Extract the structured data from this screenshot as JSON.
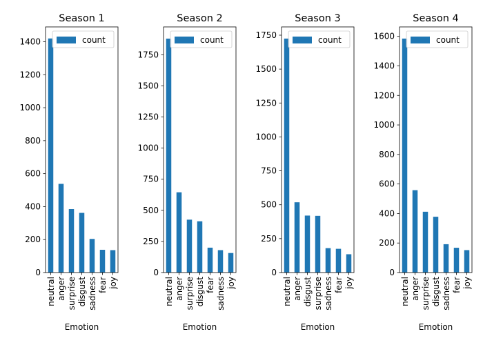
{
  "chart_data": [
    {
      "type": "bar",
      "title": "Season 1",
      "xlabel": "Emotion",
      "ylabel": "",
      "categories": [
        "neutral",
        "anger",
        "surprise",
        "disgust",
        "sadness",
        "fear",
        "joy"
      ],
      "series": [
        {
          "name": "count",
          "values": [
            1420,
            538,
            385,
            362,
            204,
            138,
            136
          ]
        }
      ],
      "ylim": [
        0,
        1490
      ],
      "yticks": [
        0,
        200,
        400,
        600,
        800,
        1000,
        1200,
        1400
      ],
      "legend": "upper right",
      "color": "#1f77b4"
    },
    {
      "type": "bar",
      "title": "Season 2",
      "xlabel": "Emotion",
      "ylabel": "",
      "categories": [
        "neutral",
        "anger",
        "surprise",
        "disgust",
        "fear",
        "sadness",
        "joy"
      ],
      "series": [
        {
          "name": "count",
          "values": [
            1880,
            645,
            425,
            412,
            200,
            180,
            157
          ]
        }
      ],
      "ylim": [
        0,
        1974
      ],
      "yticks": [
        0,
        250,
        500,
        750,
        1000,
        1250,
        1500,
        1750
      ],
      "legend": "upper right",
      "color": "#1f77b4"
    },
    {
      "type": "bar",
      "title": "Season 3",
      "xlabel": "Emotion",
      "ylabel": "",
      "categories": [
        "neutral",
        "anger",
        "disgust",
        "surprise",
        "sadness",
        "fear",
        "joy"
      ],
      "series": [
        {
          "name": "count",
          "values": [
            1725,
            518,
            420,
            418,
            180,
            175,
            135
          ]
        }
      ],
      "ylim": [
        0,
        1811
      ],
      "yticks": [
        0,
        250,
        500,
        750,
        1000,
        1250,
        1500,
        1750
      ],
      "legend": "upper right",
      "color": "#1f77b4"
    },
    {
      "type": "bar",
      "title": "Season 4",
      "xlabel": "Emotion",
      "ylabel": "",
      "categories": [
        "neutral",
        "anger",
        "surprise",
        "disgust",
        "sadness",
        "fear",
        "joy"
      ],
      "series": [
        {
          "name": "count",
          "values": [
            1585,
            558,
            412,
            378,
            192,
            168,
            152
          ]
        }
      ],
      "ylim": [
        0,
        1664
      ],
      "yticks": [
        0,
        200,
        400,
        600,
        800,
        1000,
        1200,
        1400,
        1600
      ],
      "legend": "upper right",
      "color": "#1f77b4"
    }
  ]
}
